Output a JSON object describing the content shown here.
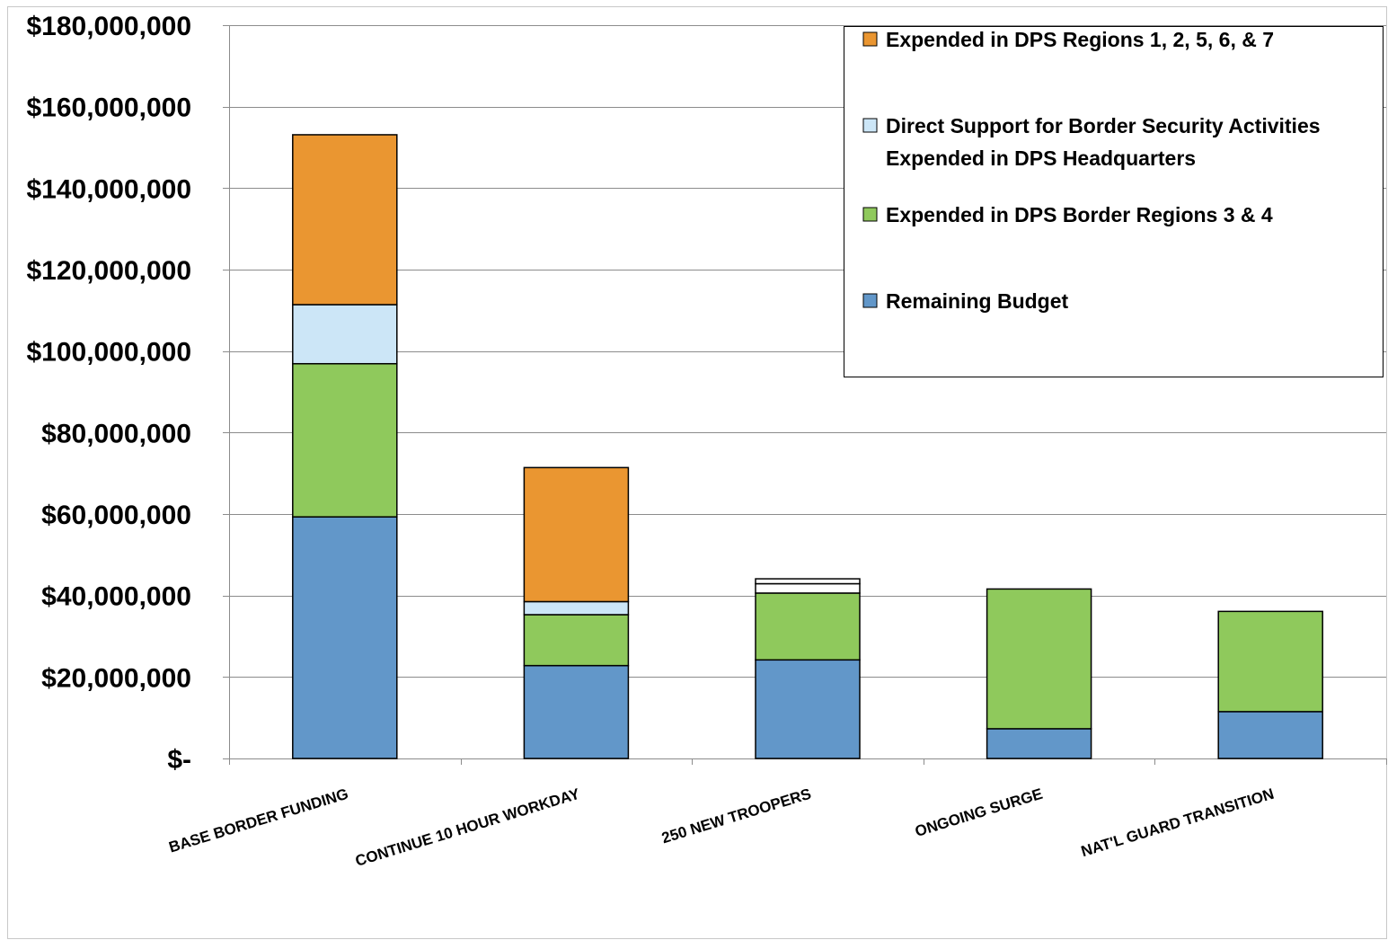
{
  "chart_data": {
    "type": "bar",
    "stacked": true,
    "title": "",
    "xlabel": "",
    "ylabel": "",
    "ylim": [
      0,
      180000000
    ],
    "yticks": [
      0,
      20000000,
      40000000,
      60000000,
      80000000,
      100000000,
      120000000,
      140000000,
      160000000,
      180000000
    ],
    "ytick_labels": [
      "$-",
      "$20,000,000",
      "$40,000,000",
      "$60,000,000",
      "$80,000,000",
      "$100,000,000",
      "$120,000,000",
      "$140,000,000",
      "$160,000,000",
      "$180,000,000"
    ],
    "grid": true,
    "legend_position": "top-right",
    "categories": [
      "BASE BORDER FUNDING",
      "CONTINUE 10 HOUR WORKDAY",
      "250 NEW TROOPERS",
      "ONGOING SURGE",
      "NAT'L GUARD TRANSITION"
    ],
    "series": [
      {
        "name": "Remaining Budget",
        "color": "#6297C9",
        "values": [
          59300000,
          22800000,
          24200000,
          7300000,
          11500000
        ]
      },
      {
        "name": "Expended in DPS Border Regions 3 & 4",
        "color": "#8FC95C",
        "values": [
          37600000,
          12500000,
          16400000,
          34300000,
          24600000
        ]
      },
      {
        "name": "Direct Support for Border Security Activities Expended in DPS Headquarters",
        "color": "#CCE6F7",
        "values": [
          14500000,
          3200000,
          0,
          0,
          0
        ]
      },
      {
        "name": "Expended in DPS Regions 1, 2, 5, 6, & 7",
        "color": "#EA9631",
        "values": [
          41700000,
          32900000,
          0,
          0,
          0
        ]
      }
    ],
    "extra_segments": [
      {
        "category": "250 NEW TROOPERS",
        "values": [
          2300000,
          1200000
        ],
        "color": "#FFFFFF"
      }
    ],
    "legend": [
      {
        "lines": [
          "Expended in DPS Regions 1, 2, 5, 6, & 7"
        ],
        "color": "#EA9631"
      },
      {
        "lines": [
          "Direct Support for Border Security Activities",
          "Expended in DPS Headquarters"
        ],
        "color": "#CCE6F7"
      },
      {
        "lines": [
          "Expended in DPS Border Regions 3 & 4"
        ],
        "color": "#8FC95C"
      },
      {
        "lines": [
          "Remaining Budget"
        ],
        "color": "#6297C9"
      }
    ]
  }
}
